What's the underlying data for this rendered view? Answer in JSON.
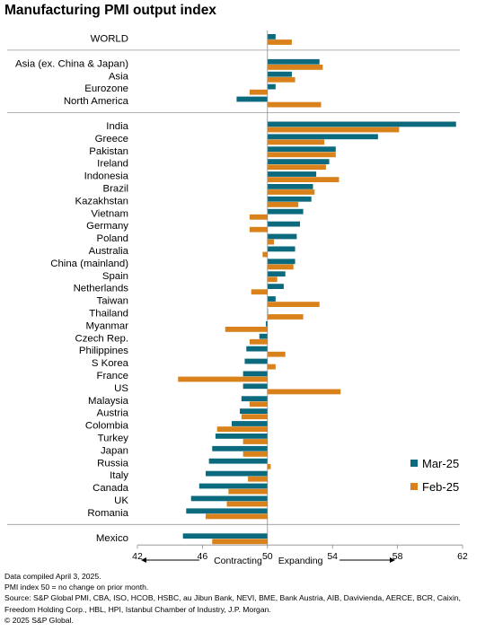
{
  "title": "Manufacturing PMI output index",
  "chart_data": {
    "type": "bar",
    "orientation": "horizontal",
    "title": "Manufacturing PMI output index",
    "xlim": [
      42,
      62
    ],
    "xticks": [
      42,
      46,
      50,
      54,
      58,
      62
    ],
    "reference_line": 50,
    "categories": [
      "WORLD",
      "Asia (ex. China & Japan)",
      "Asia",
      "Eurozone",
      "North America",
      "India",
      "Greece",
      "Pakistan",
      "Ireland",
      "Indonesia",
      "Brazil",
      "Kazakhstan",
      "Vietnam",
      "Germany",
      "Poland",
      "Australia",
      "China (mainland)",
      "Spain",
      "Netherlands",
      "Taiwan",
      "Thailand",
      "Myanmar",
      "Czech Rep.",
      "Philippines",
      "S Korea",
      "France",
      "US",
      "Malaysia",
      "Austria",
      "Colombia",
      "Turkey",
      "Japan",
      "Russia",
      "Italy",
      "Canada",
      "UK",
      "Romania",
      "Mexico"
    ],
    "groups": [
      1,
      4,
      32
    ],
    "series": [
      {
        "name": "Mar-25",
        "color": "#0b6a7d",
        "values": [
          50.5,
          53.2,
          51.5,
          50.5,
          48.1,
          61.6,
          56.8,
          54.2,
          53.8,
          53.0,
          52.8,
          52.7,
          52.2,
          52.0,
          51.8,
          51.7,
          51.7,
          51.1,
          51.0,
          50.5,
          50.0,
          49.9,
          49.5,
          48.7,
          48.6,
          48.5,
          48.5,
          48.4,
          48.3,
          47.8,
          46.8,
          46.6,
          46.4,
          46.2,
          45.8,
          45.3,
          45.0,
          44.8
        ]
      },
      {
        "name": "Feb-25",
        "color": "#d9821c",
        "values": [
          51.5,
          53.4,
          51.7,
          48.9,
          53.3,
          58.1,
          53.5,
          54.2,
          53.6,
          54.4,
          52.9,
          51.9,
          48.9,
          48.9,
          50.4,
          49.7,
          51.6,
          50.6,
          49.0,
          53.2,
          52.2,
          47.4,
          48.9,
          51.1,
          50.5,
          44.5,
          54.5,
          48.9,
          48.4,
          46.9,
          48.5,
          48.5,
          50.2,
          48.8,
          47.6,
          47.5,
          46.2,
          46.6
        ]
      }
    ],
    "legend_position": "right",
    "annotations": {
      "left": "Contracting",
      "right": "Expanding"
    }
  },
  "footer": {
    "line1": "Data compiled April 3, 2025.",
    "line2": "PMI index 50 = no change on prior month.",
    "line3": "Source: S&P Global PMI, CBA, ISO, HCOB, HSBC, au Jibun Bank, NEVI, BME, Bank Austria, AIB, Davivienda, AERCE, BCR, Caixin, Freedom Holding Corp., HBL, HPI, Istanbul Chamber of Industry, J.P. Morgan.",
    "line4": "© 2025 S&P Global."
  }
}
